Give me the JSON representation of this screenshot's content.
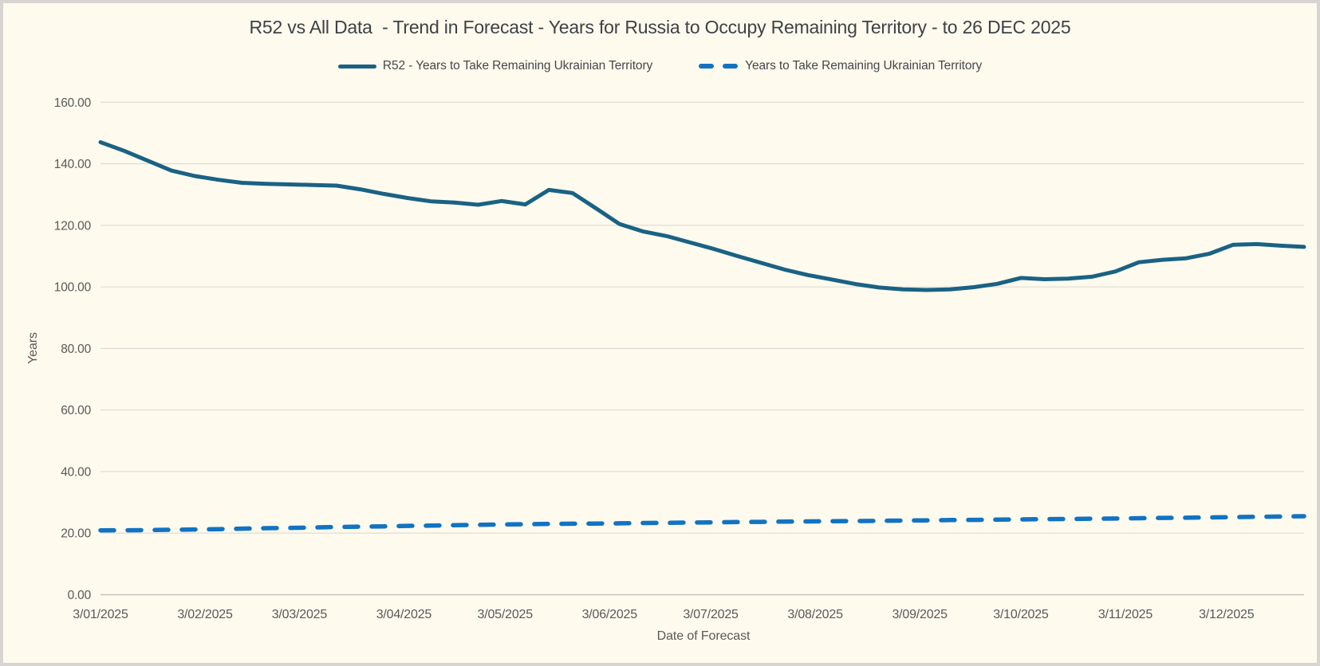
{
  "window": {
    "background_color": "#FEFAEE",
    "border_color": "#D8D4D1"
  },
  "title": "R52 vs All Data  - Trend in Forecast - Years for Russia to Occupy Remaining Territory - to 26 DEC 2025",
  "legend": {
    "position": "top",
    "items": [
      {
        "label": "R52 - Years to Take Remaining Ukrainian Territory",
        "style": "solid",
        "color": "#1A6284"
      },
      {
        "label": "Years to Take Remaining Ukrainian Territory",
        "style": "dashed",
        "color": "#1173C2"
      }
    ]
  },
  "axes": {
    "x_title": "Date of Forecast",
    "y_title": "Years"
  },
  "chart_data": {
    "type": "line",
    "title": "R52 vs All Data  - Trend in Forecast - Years for Russia to Occupy Remaining Territory - to 26 DEC 2025",
    "xlabel": "Date of Forecast",
    "ylabel": "Years",
    "ylim": [
      0,
      160
    ],
    "ytick_step": 20,
    "ytick_labels": [
      "0.00",
      "20.00",
      "40.00",
      "60.00",
      "80.00",
      "100.00",
      "120.00",
      "140.00",
      "160.00"
    ],
    "grid": "horizontal",
    "legend_position": "top",
    "x_date_format": "D/MM/YYYY",
    "x_interval_days": 7,
    "xticks": [
      {
        "label": "3/01/2025",
        "day": 0
      },
      {
        "label": "3/02/2025",
        "day": 31
      },
      {
        "label": "3/03/2025",
        "day": 59
      },
      {
        "label": "3/04/2025",
        "day": 90
      },
      {
        "label": "3/05/2025",
        "day": 120
      },
      {
        "label": "3/06/2025",
        "day": 151
      },
      {
        "label": "3/07/2025",
        "day": 181
      },
      {
        "label": "3/08/2025",
        "day": 212
      },
      {
        "label": "3/09/2025",
        "day": 243
      },
      {
        "label": "3/10/2025",
        "day": 273
      },
      {
        "label": "3/11/2025",
        "day": 304
      },
      {
        "label": "3/12/2025",
        "day": 334
      }
    ],
    "x_dates": [
      "3/01/2025",
      "10/01/2025",
      "17/01/2025",
      "24/01/2025",
      "31/01/2025",
      "7/02/2025",
      "14/02/2025",
      "21/02/2025",
      "28/02/2025",
      "7/03/2025",
      "14/03/2025",
      "21/03/2025",
      "28/03/2025",
      "4/04/2025",
      "11/04/2025",
      "18/04/2025",
      "25/04/2025",
      "2/05/2025",
      "9/05/2025",
      "16/05/2025",
      "23/05/2025",
      "30/05/2025",
      "6/06/2025",
      "13/06/2025",
      "20/06/2025",
      "27/06/2025",
      "4/07/2025",
      "11/07/2025",
      "18/07/2025",
      "25/07/2025",
      "1/08/2025",
      "8/08/2025",
      "15/08/2025",
      "22/08/2025",
      "29/08/2025",
      "5/09/2025",
      "12/09/2025",
      "19/09/2025",
      "26/09/2025",
      "3/10/2025",
      "10/10/2025",
      "17/10/2025",
      "24/10/2025",
      "31/10/2025",
      "7/11/2025",
      "14/11/2025",
      "21/11/2025",
      "28/11/2025",
      "5/12/2025",
      "12/12/2025",
      "19/12/2025",
      "26/12/2025"
    ],
    "series": [
      {
        "name": "R52 - Years to Take Remaining Ukrainian Territory",
        "color": "#1A6284",
        "dash": "solid",
        "values": [
          147.0,
          144.2,
          141.0,
          137.8,
          136.0,
          134.8,
          133.8,
          133.5,
          133.3,
          133.1,
          132.9,
          131.7,
          130.2,
          128.9,
          127.8,
          127.4,
          126.7,
          127.9,
          126.8,
          131.5,
          130.5,
          125.5,
          120.4,
          118.0,
          116.5,
          114.4,
          112.3,
          110.0,
          107.8,
          105.6,
          103.8,
          102.4,
          100.9,
          99.8,
          99.2,
          99.0,
          99.2,
          99.9,
          101.0,
          102.9,
          102.5,
          102.7,
          103.3,
          105.0,
          108.0,
          108.8,
          109.3,
          110.8,
          113.7,
          113.9,
          113.4,
          113.0
        ]
      },
      {
        "name": "Years to Take Remaining Ukrainian Territory",
        "color": "#1173C2",
        "dash": "dashed",
        "values": [
          20.9,
          20.95,
          21.0,
          21.1,
          21.2,
          21.3,
          21.45,
          21.6,
          21.7,
          21.85,
          22.0,
          22.1,
          22.2,
          22.35,
          22.45,
          22.6,
          22.7,
          22.8,
          22.9,
          23.0,
          23.05,
          23.1,
          23.2,
          23.3,
          23.35,
          23.45,
          23.5,
          23.6,
          23.65,
          23.75,
          23.8,
          23.9,
          23.95,
          24.0,
          24.1,
          24.15,
          24.25,
          24.3,
          24.4,
          24.45,
          24.55,
          24.6,
          24.7,
          24.75,
          24.85,
          24.95,
          25.0,
          25.1,
          25.2,
          25.3,
          25.4,
          25.5
        ]
      }
    ],
    "style": {
      "gridline_color": "#DBD9D4",
      "axisline_color": "#C3C1BC",
      "tick_label_color": "#595959",
      "line_width": 5
    }
  }
}
